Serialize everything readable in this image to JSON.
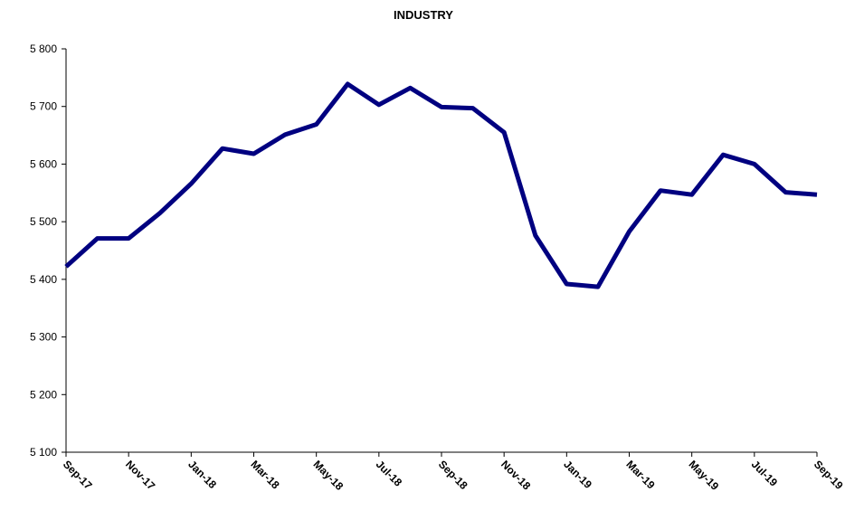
{
  "chart_data": {
    "type": "line",
    "title": "INDUSTRY",
    "xlabel": "",
    "ylabel": "",
    "x": [
      "Sep-17",
      "Oct-17",
      "Nov-17",
      "Dec-17",
      "Jan-18",
      "Feb-18",
      "Mar-18",
      "Apr-18",
      "May-18",
      "Jun-18",
      "Jul-18",
      "Aug-18",
      "Sep-18",
      "Oct-18",
      "Nov-18",
      "Dec-18",
      "Jan-19",
      "Feb-19",
      "Mar-19",
      "Apr-19",
      "May-19",
      "Jun-19",
      "Jul-19",
      "Aug-19",
      "Sep-19"
    ],
    "x_tick_labels": [
      "Sep-17",
      "Nov-17",
      "Jan-18",
      "Mar-18",
      "May-18",
      "Jul-18",
      "Sep-18",
      "Nov-18",
      "Jan-19",
      "Mar-19",
      "May-19",
      "Jul-19",
      "Sep-19"
    ],
    "series": [
      {
        "values": [
          5422,
          5471,
          5471,
          5515,
          5566,
          5627,
          5618,
          5651,
          5669,
          5739,
          5703,
          5732,
          5699,
          5697,
          5655,
          5476,
          5392,
          5387,
          5483,
          5554,
          5547,
          5616,
          5600,
          5551,
          5547
        ],
        "color": "#000080"
      }
    ],
    "ylim": [
      5100,
      5800
    ],
    "y_ticks": [
      5100,
      5200,
      5300,
      5400,
      5500,
      5600,
      5700,
      5800
    ],
    "y_tick_labels": [
      "5 100",
      "5 200",
      "5 300",
      "5 400",
      "5 500",
      "5 600",
      "5 700",
      "5 800"
    ],
    "grid": false,
    "legend": "none"
  }
}
